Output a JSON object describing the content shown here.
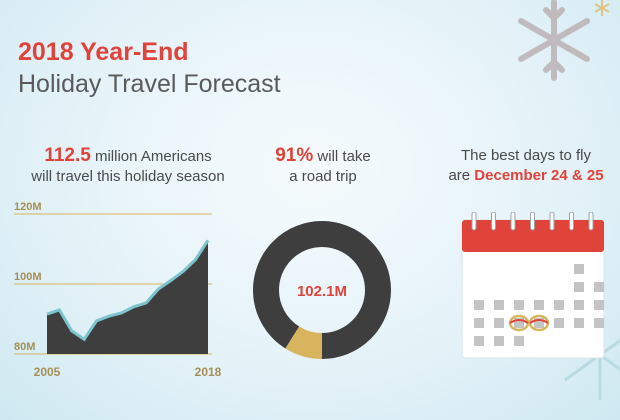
{
  "title": {
    "line1": "2018 Year-End",
    "line2": "Holiday Travel Forecast"
  },
  "stats": {
    "travelers": {
      "number": "112.5",
      "text1": " million Americans",
      "text2": "will travel this holiday season"
    },
    "road_trip": {
      "number": "91%",
      "text1": " will take",
      "text2": "a road trip"
    },
    "best_days": {
      "line1": "The best days to fly",
      "prefix": "are ",
      "highlight": "December 24 & 25"
    }
  },
  "colors": {
    "accent_red": "#e0433a",
    "gold": "#d7b45d",
    "dark": "#3e3e3e",
    "teal_line": "#7ec4cf",
    "gray_cell": "#c4c4c4"
  },
  "icons": [
    "snowflake-icon",
    "calendar-icon"
  ],
  "chart_data": [
    {
      "type": "area",
      "x": [
        2005,
        2006,
        2007,
        2008,
        2009,
        2010,
        2011,
        2012,
        2013,
        2014,
        2015,
        2016,
        2017,
        2018
      ],
      "values": [
        91.4,
        92.6,
        86.6,
        84.2,
        89.5,
        90.8,
        91.7,
        93.5,
        94.6,
        98.6,
        101.0,
        103.6,
        107.0,
        112.5
      ],
      "yticks": [
        "120M",
        "100M",
        "80M"
      ],
      "ytick_values": [
        120,
        100,
        80
      ],
      "xticks": [
        "2005",
        "2018"
      ],
      "ylim": [
        80,
        120
      ],
      "xlim": [
        2005,
        2018
      ],
      "grid": true
    },
    {
      "type": "pie",
      "donut": true,
      "values": [
        91,
        9
      ],
      "center_label": "102.1M"
    }
  ],
  "calendar": {
    "rows": 5,
    "cols": 7,
    "filled_days": [
      6,
      13,
      14,
      15,
      16,
      17,
      18,
      19,
      20,
      21,
      22,
      23,
      24,
      25,
      26,
      27,
      28,
      29,
      30,
      31
    ],
    "circled_days": [
      24,
      25
    ]
  }
}
